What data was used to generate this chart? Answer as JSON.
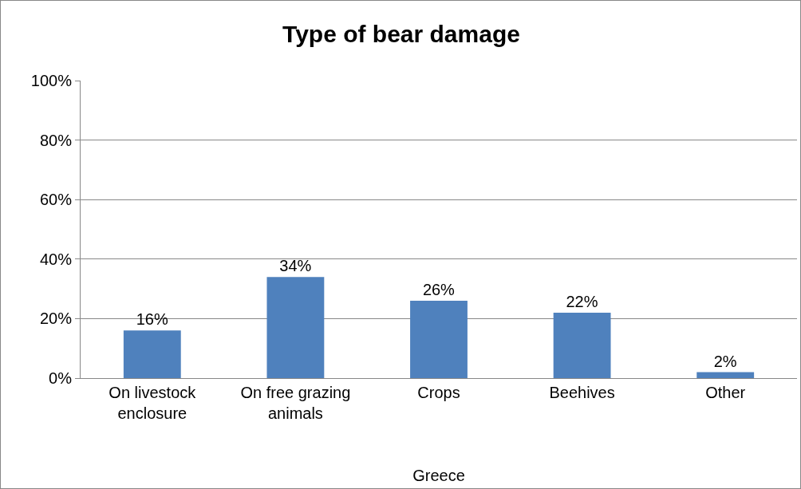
{
  "chart_data": {
    "type": "bar",
    "title": "Type of bear damage",
    "categories": [
      "On livestock\nenclosure",
      "On free grazing\nanimals",
      "Crops",
      "Beehives",
      "Other"
    ],
    "values": [
      16,
      34,
      26,
      22,
      2
    ],
    "value_labels": [
      "16%",
      "34%",
      "26%",
      "22%",
      "2%"
    ],
    "color": "#4f81bd",
    "xlabel": "Greece",
    "ylim": [
      0,
      100
    ],
    "yticks": [
      {
        "value": 0,
        "label": "0%"
      },
      {
        "value": 20,
        "label": "20%"
      },
      {
        "value": 40,
        "label": "40%"
      },
      {
        "value": 60,
        "label": "60%"
      },
      {
        "value": 80,
        "label": "80%"
      },
      {
        "value": 100,
        "label": "100%"
      }
    ],
    "grid": "y"
  }
}
